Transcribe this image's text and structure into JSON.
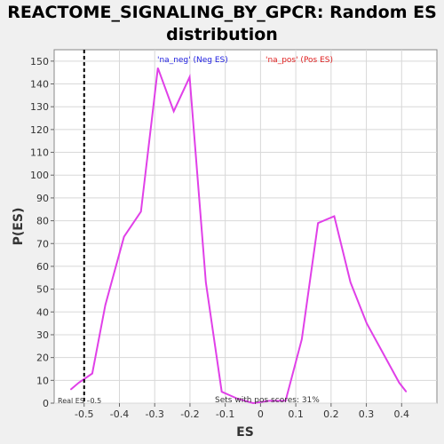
{
  "chart_data": {
    "type": "line",
    "title_line1": "REACTOME_SIGNALING_BY_GPCR: Random ES",
    "title_line2": "distribution",
    "xlabel": "ES",
    "ylabel": "P(ES)",
    "xlim": [
      -0.585,
      0.5
    ],
    "ylim": [
      0,
      155
    ],
    "x_ticks": [
      -0.5,
      -0.4,
      -0.3,
      -0.2,
      -0.1,
      0.0,
      0.1,
      0.2,
      0.3,
      0.4
    ],
    "y_ticks": [
      0,
      10,
      20,
      30,
      40,
      50,
      60,
      70,
      80,
      90,
      100,
      110,
      120,
      130,
      140,
      150
    ],
    "legend": [
      {
        "label": "'na_neg' (Neg ES)",
        "color": "#2020e0"
      },
      {
        "label": "'na_pos' (Pos ES)",
        "color": "#e02020"
      }
    ],
    "series": [
      {
        "color": "#e040e8",
        "x": [
          -0.538,
          -0.515,
          -0.477,
          -0.44,
          -0.387,
          -0.339,
          -0.291,
          -0.246,
          -0.201,
          -0.155,
          -0.11,
          -0.066,
          -0.021,
          0.025,
          0.071,
          0.117,
          0.163,
          0.209,
          0.255,
          0.301,
          0.347,
          0.393,
          0.413
        ],
        "y": [
          6,
          9,
          13,
          43,
          73,
          84,
          147,
          128,
          143,
          53,
          5,
          2,
          0,
          1,
          1,
          28,
          79,
          82,
          53,
          35,
          22,
          9,
          5
        ]
      }
    ],
    "real_es": {
      "x": -0.5,
      "label": "Real ES –0.5"
    },
    "footnote": "Sets with pos scores: 31%",
    "grid": true
  }
}
